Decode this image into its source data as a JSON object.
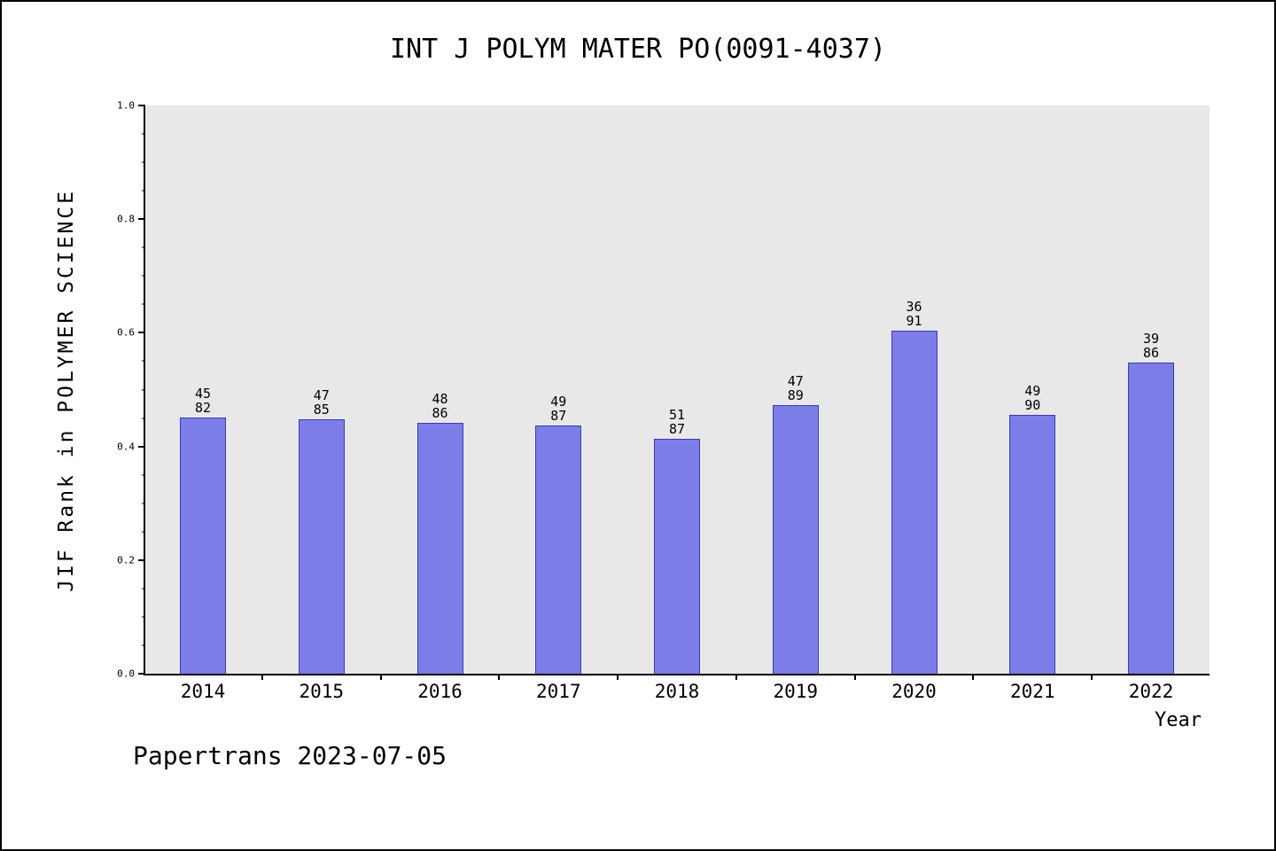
{
  "header": {
    "title": "INT J POLYM MATER PO(0091-4037)"
  },
  "footer": {
    "text": "Papertrans 2023-07-05"
  },
  "chart_data": {
    "type": "bar",
    "title": "INT J POLYM MATER PO(0091-4037)",
    "xlabel": "Year",
    "ylabel": "JIF Rank in POLYMER SCIENCE",
    "categories": [
      "2014",
      "2015",
      "2016",
      "2017",
      "2018",
      "2019",
      "2020",
      "2021",
      "2022"
    ],
    "values": [
      0.451,
      0.447,
      0.442,
      0.437,
      0.414,
      0.472,
      0.604,
      0.456,
      0.547
    ],
    "bar_labels": [
      [
        "45",
        "82"
      ],
      [
        "47",
        "85"
      ],
      [
        "48",
        "86"
      ],
      [
        "49",
        "87"
      ],
      [
        "51",
        "87"
      ],
      [
        "47",
        "89"
      ],
      [
        "36",
        "91"
      ],
      [
        "49",
        "90"
      ],
      [
        "39",
        "86"
      ]
    ],
    "ylim": [
      0,
      1
    ],
    "yticks": [
      0.0,
      0.2,
      0.4,
      0.6,
      0.8,
      1.0
    ],
    "ytick_labels": [
      "0.0",
      "0.2",
      "0.4",
      "0.6",
      "0.8",
      "1.0"
    ],
    "grid": false,
    "legend_position": "none",
    "colors": {
      "bar_fill": "#7d7de8",
      "bar_border": "#3b3bb0",
      "plot_background": "#e8e8e8",
      "axis": "#000000"
    }
  }
}
